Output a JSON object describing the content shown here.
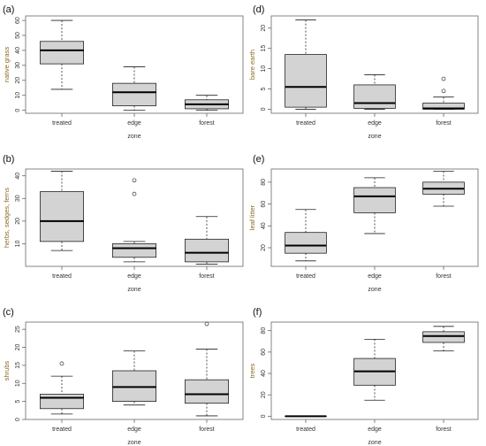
{
  "chart_data": [
    {
      "type": "boxplot",
      "panel_label": "(a)",
      "xlabel": "zone",
      "ylabel": "native grass",
      "categories": [
        "treated",
        "edge",
        "forest"
      ],
      "ylim": [
        -2,
        63
      ],
      "yticks": [
        0,
        10,
        20,
        30,
        40,
        50,
        60
      ],
      "boxes": [
        {
          "whislo": 14,
          "q1": 31,
          "med": 40,
          "q3": 46,
          "whishi": 60,
          "outliers": []
        },
        {
          "whislo": 0,
          "q1": 3,
          "med": 12,
          "q3": 18,
          "whishi": 29,
          "outliers": []
        },
        {
          "whislo": 0,
          "q1": 1,
          "med": 4,
          "q3": 7,
          "whishi": 10,
          "outliers": []
        }
      ]
    },
    {
      "type": "boxplot",
      "panel_label": "(b)",
      "xlabel": "zone",
      "ylabel": "herbs, sedges, ferns",
      "categories": [
        "treated",
        "edge",
        "forest"
      ],
      "ylim": [
        0,
        43
      ],
      "yticks": [
        10,
        20,
        30,
        40
      ],
      "boxes": [
        {
          "whislo": 7,
          "q1": 11,
          "med": 20,
          "q3": 33,
          "whishi": 42,
          "outliers": []
        },
        {
          "whislo": 2,
          "q1": 4,
          "med": 8,
          "q3": 10,
          "whishi": 11,
          "outliers": [
            32,
            38
          ]
        },
        {
          "whislo": 1,
          "q1": 2,
          "med": 6,
          "q3": 12,
          "whishi": 22,
          "outliers": []
        }
      ]
    },
    {
      "type": "boxplot",
      "panel_label": "(c)",
      "xlabel": "zone",
      "ylabel": "shrubs",
      "categories": [
        "treated",
        "edge",
        "forest"
      ],
      "ylim": [
        0,
        27
      ],
      "yticks": [
        0,
        5,
        10,
        15,
        20,
        25
      ],
      "boxes": [
        {
          "whislo": 1.5,
          "q1": 3,
          "med": 6,
          "q3": 7,
          "whishi": 12,
          "outliers": [
            15.5
          ]
        },
        {
          "whislo": 4,
          "q1": 5,
          "med": 9,
          "q3": 13.5,
          "whishi": 19,
          "outliers": []
        },
        {
          "whislo": 1,
          "q1": 4.5,
          "med": 7,
          "q3": 11,
          "whishi": 19.5,
          "outliers": [
            26.5
          ]
        }
      ]
    },
    {
      "type": "boxplot",
      "panel_label": "(d)",
      "xlabel": "zone",
      "ylabel": "bare earth",
      "categories": [
        "treated",
        "edge",
        "forest"
      ],
      "ylim": [
        -1,
        23
      ],
      "yticks": [
        0,
        5,
        10,
        15,
        20
      ],
      "boxes": [
        {
          "whislo": 0,
          "q1": 0.5,
          "med": 5.5,
          "q3": 13.5,
          "whishi": 22,
          "outliers": []
        },
        {
          "whislo": 0,
          "q1": 0.2,
          "med": 1.5,
          "q3": 6,
          "whishi": 8.5,
          "outliers": []
        },
        {
          "whislo": 0,
          "q1": 0,
          "med": 0.2,
          "q3": 1.5,
          "whishi": 3,
          "outliers": [
            4.5,
            7.5
          ]
        }
      ]
    },
    {
      "type": "boxplot",
      "panel_label": "(e)",
      "xlabel": "zone",
      "ylabel": "leaf litter",
      "categories": [
        "treated",
        "edge",
        "forest"
      ],
      "ylim": [
        3,
        92
      ],
      "yticks": [
        20,
        40,
        60,
        80
      ],
      "boxes": [
        {
          "whislo": 8,
          "q1": 15,
          "med": 22,
          "q3": 34,
          "whishi": 55,
          "outliers": []
        },
        {
          "whislo": 33,
          "q1": 52,
          "med": 67,
          "q3": 75,
          "whishi": 84,
          "outliers": []
        },
        {
          "whislo": 58,
          "q1": 69,
          "med": 74,
          "q3": 80,
          "whishi": 90,
          "outliers": []
        }
      ]
    },
    {
      "type": "boxplot",
      "panel_label": "(f)",
      "xlabel": "zone",
      "ylabel": "trees",
      "categories": [
        "treated",
        "edge",
        "forest"
      ],
      "ylim": [
        -3,
        88
      ],
      "yticks": [
        0,
        20,
        40,
        60,
        80
      ],
      "boxes": [
        {
          "whislo": 0,
          "q1": 0,
          "med": 0,
          "q3": 0,
          "whishi": 0,
          "outliers": []
        },
        {
          "whislo": 15,
          "q1": 29,
          "med": 42,
          "q3": 54,
          "whishi": 72,
          "outliers": []
        },
        {
          "whislo": 61,
          "q1": 69,
          "med": 75,
          "q3": 79,
          "whishi": 84,
          "outliers": []
        }
      ]
    }
  ]
}
